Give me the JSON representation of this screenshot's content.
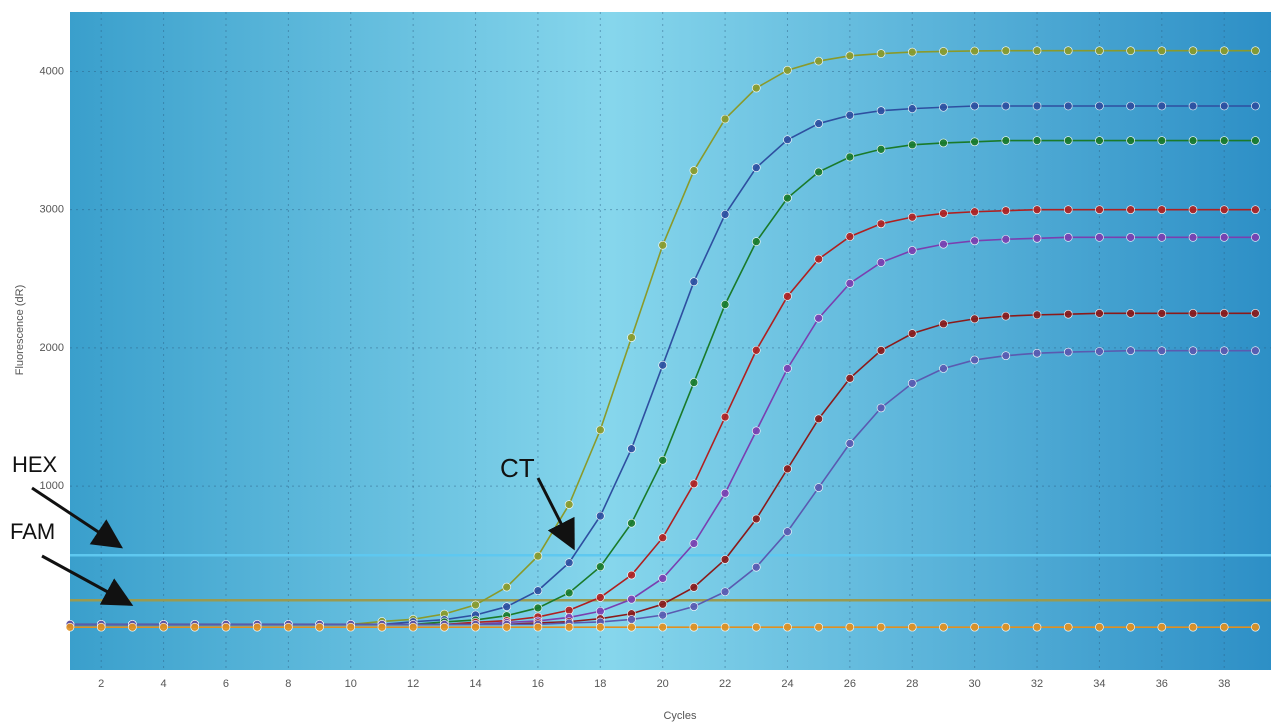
{
  "chart_data": {
    "type": "line",
    "x_label": "Cycles",
    "y_label": "Fluorescence (dR)",
    "x": [
      1,
      2,
      3,
      4,
      5,
      6,
      7,
      8,
      9,
      10,
      11,
      12,
      13,
      14,
      15,
      16,
      17,
      18,
      19,
      20,
      21,
      22,
      23,
      24,
      25,
      26,
      27,
      28,
      29,
      30,
      31,
      32,
      33,
      34,
      35,
      36,
      37,
      38,
      39
    ],
    "xlim": [
      1,
      39.5
    ],
    "xticks": [
      2,
      4,
      6,
      8,
      10,
      12,
      14,
      16,
      18,
      20,
      22,
      24,
      26,
      28,
      30,
      32,
      34,
      36,
      38
    ],
    "ylim": [
      -330,
      4430
    ],
    "yticks": [
      1000,
      2000,
      3000,
      4000
    ],
    "grid": true,
    "series": [
      {
        "color": "#8a9a2a",
        "values": [
          0,
          0,
          0,
          0,
          0,
          0,
          0,
          0,
          0,
          0,
          21,
          37,
          75,
          141,
          270,
          494,
          867,
          1407,
          2075,
          2743,
          3283,
          3656,
          3880,
          4009,
          4075,
          4113,
          4129,
          4140,
          4145,
          4148,
          4150,
          4150,
          4150,
          4150,
          4150,
          4150,
          4150,
          4150,
          4150
        ]
      },
      {
        "color": "#2e4fa0",
        "values": [
          0,
          0,
          0,
          0,
          0,
          0,
          0,
          0,
          0,
          0,
          0,
          19,
          34,
          68,
          128,
          244,
          446,
          784,
          1271,
          1875,
          2479,
          2966,
          3304,
          3506,
          3623,
          3683,
          3716,
          3731,
          3741,
          3750,
          3750,
          3750,
          3750,
          3750,
          3750,
          3750,
          3750,
          3750,
          3750
        ]
      },
      {
        "color": "#1a7a2a",
        "values": [
          0,
          0,
          0,
          0,
          0,
          0,
          0,
          0,
          0,
          0,
          0,
          0,
          18,
          32,
          63,
          119,
          228,
          417,
          732,
          1187,
          1750,
          2314,
          2769,
          3084,
          3273,
          3381,
          3437,
          3469,
          3483,
          3491,
          3500,
          3500,
          3500,
          3500,
          3500,
          3500,
          3500,
          3500,
          3500
        ]
      },
      {
        "color": "#b02020",
        "values": [
          0,
          0,
          0,
          0,
          0,
          0,
          0,
          0,
          0,
          0,
          0,
          0,
          0,
          15,
          27,
          54,
          102,
          195,
          357,
          627,
          1017,
          1500,
          1983,
          2373,
          2643,
          2805,
          2898,
          2946,
          2973,
          2985,
          2993,
          3000,
          3000,
          3000,
          3000,
          3000,
          3000,
          3000,
          3000
        ]
      },
      {
        "color": "#7a3fb0",
        "values": [
          0,
          0,
          0,
          0,
          0,
          0,
          0,
          0,
          0,
          0,
          0,
          0,
          0,
          0,
          14,
          25,
          50,
          95,
          182,
          333,
          585,
          949,
          1400,
          1851,
          2215,
          2467,
          2618,
          2705,
          2750,
          2775,
          2786,
          2793,
          2800,
          2800,
          2800,
          2800,
          2800,
          2800,
          2800
        ]
      },
      {
        "color": "#8b1a1a",
        "values": [
          0,
          0,
          0,
          0,
          0,
          0,
          0,
          0,
          0,
          0,
          0,
          0,
          0,
          0,
          0,
          11,
          20,
          41,
          77,
          146,
          268,
          470,
          763,
          1125,
          1487,
          1780,
          1982,
          2104,
          2174,
          2210,
          2230,
          2239,
          2244,
          2250,
          2250,
          2250,
          2250,
          2250,
          2250
        ]
      },
      {
        "color": "#5a5ab0",
        "values": [
          0,
          0,
          0,
          0,
          0,
          0,
          0,
          0,
          0,
          0,
          0,
          0,
          0,
          0,
          0,
          0,
          10,
          18,
          36,
          67,
          129,
          236,
          414,
          671,
          990,
          1309,
          1566,
          1744,
          1851,
          1913,
          1944,
          1962,
          1970,
          1975,
          1980,
          1980,
          1980,
          1980,
          1980
        ]
      },
      {
        "color": "#e09020",
        "values": [
          -20,
          -20,
          -20,
          -20,
          -20,
          -20,
          -20,
          -20,
          -20,
          -20,
          -20,
          -20,
          -20,
          -20,
          -20,
          -20,
          -20,
          -20,
          -20,
          -20,
          -20,
          -20,
          -20,
          -20,
          -20,
          -20,
          -20,
          -20,
          -20,
          -20,
          -20,
          -20,
          -20,
          -20,
          -20,
          -20,
          -20,
          -20,
          -20
        ]
      }
    ],
    "thresholds": [
      {
        "label": "HEX",
        "value": 500,
        "color": "#5ec8f0"
      },
      {
        "label": "FAM",
        "value": 175,
        "color": "#9a9a50"
      }
    ],
    "annotation": "CT"
  }
}
